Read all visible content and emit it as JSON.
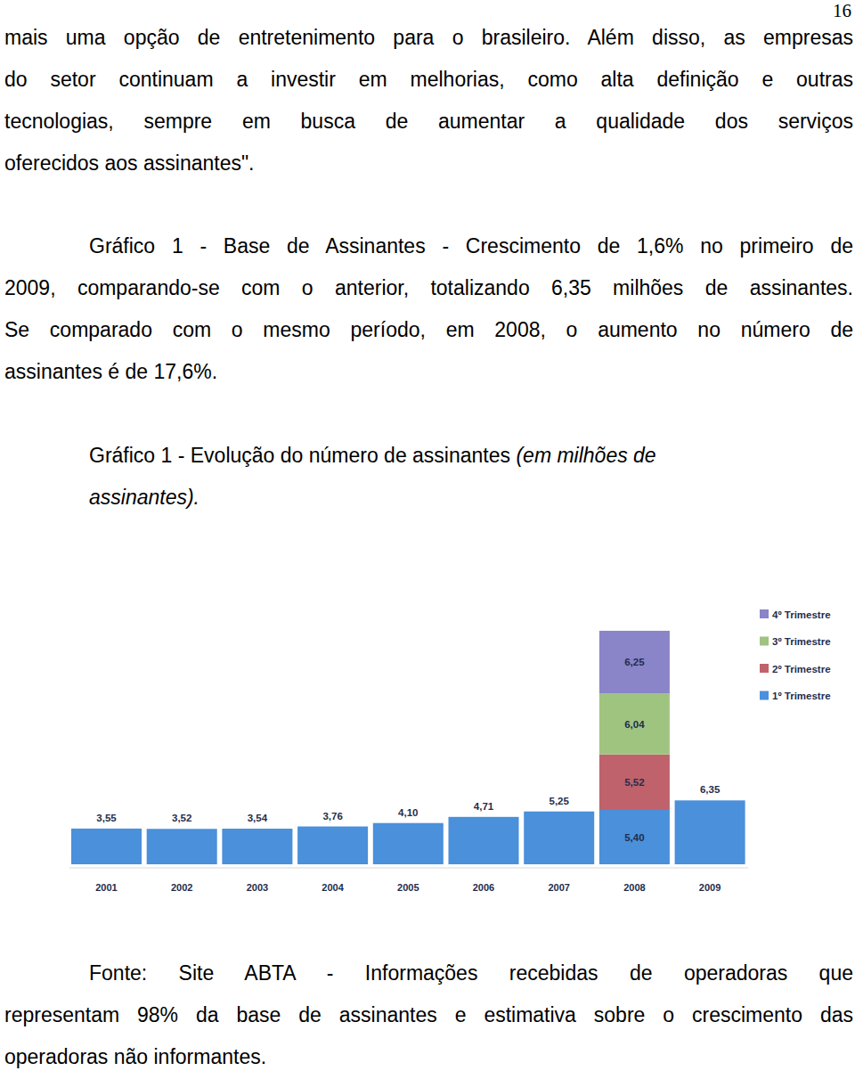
{
  "page_number": "16",
  "intro": {
    "lines": [
      "mais uma opção de entretenimento para o brasileiro. Além disso, as empresas",
      "do setor continuam a investir em melhorias, como alta definição e outras",
      "tecnologias, sempre em busca de aumentar a qualidade dos serviços",
      "oferecidos aos assinantes\"."
    ]
  },
  "description": {
    "lines": [
      "Gráfico 1 -  Base de Assinantes - Crescimento de 1,6% no primeiro de",
      "2009, comparando-se com o anterior, totalizando 6,35 milhões de assinantes.",
      "Se comparado com o mesmo período, em 2008, o aumento no número de",
      "assinantes é de 17,6%."
    ]
  },
  "caption": {
    "lines": [
      [
        {
          "text": "Gráfico 1 - Evolução do número de assinantes ",
          "style": "normal"
        },
        {
          "text": "(em milhões de",
          "style": "italic"
        }
      ],
      [
        {
          "text": "assinantes).",
          "style": "italic"
        }
      ]
    ]
  },
  "chart_data": {
    "type": "bar",
    "stacked": true,
    "data_labels": true,
    "legend": "upper right",
    "tick_labels": "x",
    "categories": [
      "2001",
      "2002",
      "2003",
      "2004",
      "2005",
      "2006",
      "2007",
      "2008",
      "2009"
    ],
    "ylim": [
      0,
      24
    ],
    "series": [
      {
        "name": "1º Trimestre",
        "color": "#4a90db",
        "values": [
          3.55,
          3.52,
          3.54,
          3.76,
          4.1,
          4.71,
          5.25,
          5.4,
          6.35
        ],
        "value_labels": [
          "3,55",
          "3,52",
          "3,54",
          "3,76",
          "4,10",
          "4,71",
          "5,25",
          "5,40",
          "6,35"
        ]
      },
      {
        "name": "2º Trimestre",
        "color": "#c0626b",
        "values": [
          null,
          null,
          null,
          null,
          null,
          null,
          null,
          5.52,
          null
        ],
        "value_labels": [
          null,
          null,
          null,
          null,
          null,
          null,
          null,
          "5,52",
          null
        ]
      },
      {
        "name": "3º Trimestre",
        "color": "#9fc480",
        "values": [
          null,
          null,
          null,
          null,
          null,
          null,
          null,
          6.04,
          null
        ],
        "value_labels": [
          null,
          null,
          null,
          null,
          null,
          null,
          null,
          "6,04",
          null
        ]
      },
      {
        "name": "4º Trimestre",
        "color": "#8a84c8",
        "values": [
          null,
          null,
          null,
          null,
          null,
          null,
          null,
          6.25,
          null
        ],
        "value_labels": [
          null,
          null,
          null,
          null,
          null,
          null,
          null,
          "6,25",
          null
        ]
      }
    ]
  },
  "source": {
    "lines": [
      "Fonte: Site ABTA - Informações recebidas de operadoras que",
      "representam 98% da base de assinantes e estimativa sobre o crescimento das",
      "operadoras não informantes."
    ]
  }
}
